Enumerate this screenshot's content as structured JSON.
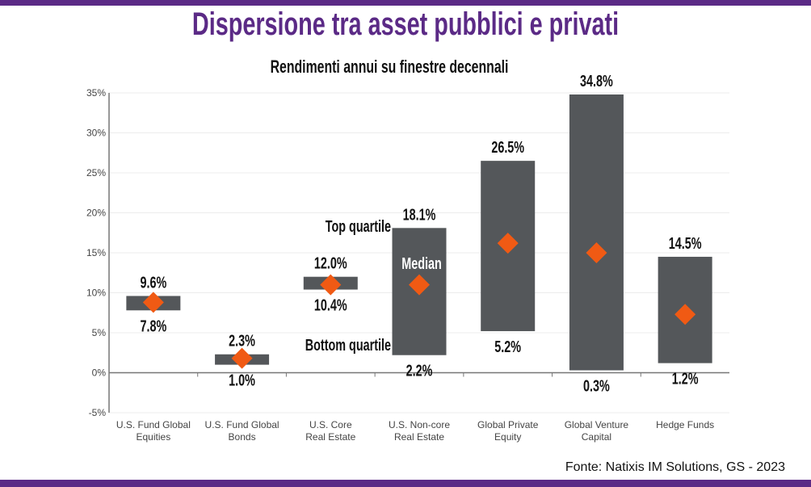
{
  "title": "Dispersione tra asset pubblici e privati",
  "subtitle": "Rendimenti annui su finestre decennali",
  "source": "Fonte: Natixis IM Solutions, GS - 2023",
  "annotations": {
    "top": "Top quartile",
    "median": "Median",
    "bottom": "Bottom quartile"
  },
  "colors": {
    "brand": "#5b2a86",
    "bar": "#54575a",
    "median": "#f05a14"
  },
  "chart_data": {
    "type": "bar",
    "subtype": "floating range bar with median marker",
    "categories": [
      [
        "U.S. Fund Global",
        "Equities"
      ],
      [
        "U.S. Fund Global",
        "Bonds"
      ],
      [
        "U.S. Core",
        "Real Estate"
      ],
      [
        "U.S. Non-core",
        "Real Estate"
      ],
      [
        "Global Private",
        "Equity"
      ],
      [
        "Global Venture",
        "Capital"
      ],
      [
        "Hedge Funds"
      ]
    ],
    "top_quartile": [
      9.6,
      2.3,
      12.0,
      18.1,
      26.5,
      34.8,
      14.5
    ],
    "bottom_quartile": [
      7.8,
      1.0,
      10.4,
      2.2,
      5.2,
      0.3,
      1.2
    ],
    "median": [
      8.8,
      1.8,
      11.0,
      11.0,
      16.2,
      15.0,
      7.3
    ],
    "top_labels": [
      "9.6%",
      "2.3%",
      "12.0%",
      "18.1%",
      "26.5%",
      "34.8%",
      "14.5%"
    ],
    "bottom_labels": [
      "7.8%",
      "1.0%",
      "10.4%",
      "2.2%",
      "5.2%",
      "0.3%",
      "1.2%"
    ],
    "yticks": [
      "-5%",
      "0%",
      "5%",
      "10%",
      "15%",
      "20%",
      "25%",
      "30%",
      "35%"
    ],
    "ylim": [
      -5,
      35
    ],
    "grid": true
  }
}
